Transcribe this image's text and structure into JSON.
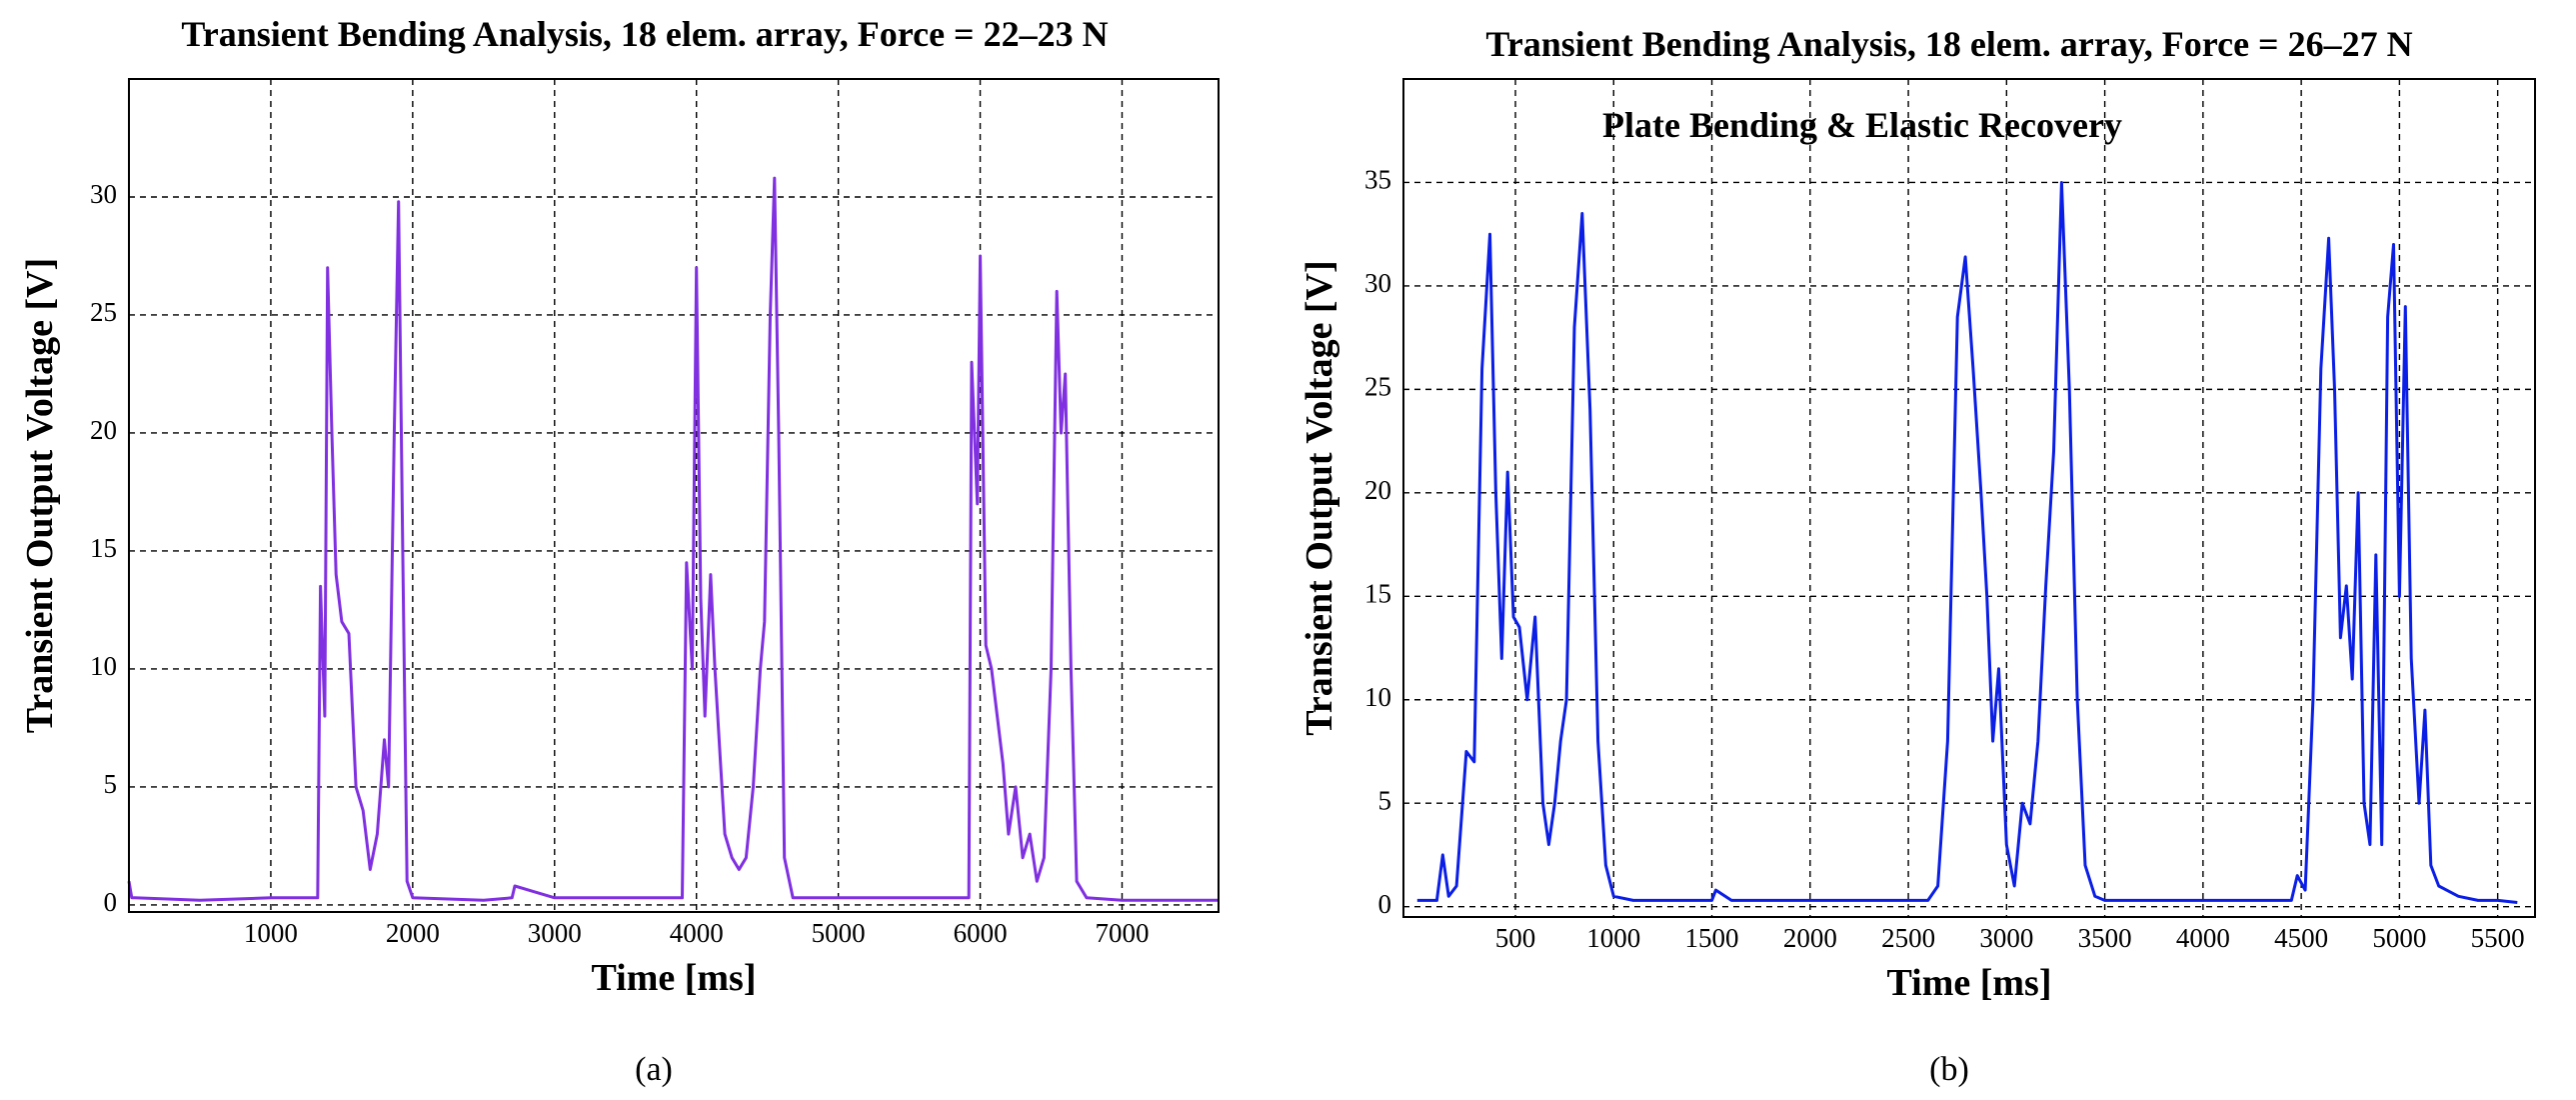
{
  "chart_data": [
    {
      "type": "line",
      "title": "Transient Bending Analysis, 18 elem. array, Force = 22–23 N",
      "xlabel": "Time [ms]",
      "ylabel": "Transient Output Voltage [V]",
      "caption": "(a)",
      "color": "#8030e0",
      "grid": true,
      "xlim": [
        0,
        7680
      ],
      "ylim": [
        -0.3,
        35
      ],
      "xticks": [
        1000,
        2000,
        3000,
        4000,
        5000,
        6000,
        7000
      ],
      "yticks": [
        0,
        5,
        10,
        15,
        20,
        25,
        30
      ],
      "x": [
        0,
        20,
        40,
        500,
        1000,
        1330,
        1350,
        1380,
        1400,
        1430,
        1460,
        1500,
        1550,
        1600,
        1650,
        1700,
        1750,
        1800,
        1830,
        1870,
        1900,
        1930,
        1960,
        2000,
        2500,
        2700,
        2720,
        3000,
        3500,
        3900,
        3930,
        3970,
        4000,
        4030,
        4060,
        4100,
        4130,
        4170,
        4200,
        4250,
        4300,
        4350,
        4400,
        4450,
        4480,
        4520,
        4550,
        4580,
        4620,
        4680,
        5000,
        5500,
        5920,
        5940,
        5980,
        6000,
        6040,
        6080,
        6120,
        6160,
        6200,
        6250,
        6300,
        6350,
        6400,
        6450,
        6500,
        6540,
        6570,
        6600,
        6640,
        6680,
        6750,
        7000,
        7680
      ],
      "values": [
        1,
        0.3,
        0.3,
        0.2,
        0.3,
        0.3,
        13.5,
        8,
        27,
        20,
        14,
        12,
        11.5,
        5,
        4,
        1.5,
        3,
        7,
        5,
        20,
        29.8,
        15,
        1,
        0.3,
        0.2,
        0.3,
        0.8,
        0.3,
        0.3,
        0.3,
        14.5,
        10,
        27,
        13,
        8,
        14,
        10,
        6,
        3,
        2,
        1.5,
        2,
        5,
        10,
        12,
        25,
        30.8,
        20,
        2,
        0.3,
        0.3,
        0.3,
        0.3,
        23,
        17,
        27.5,
        11,
        10,
        8,
        6,
        3,
        5,
        2,
        3,
        1,
        2,
        10,
        26,
        20,
        22.5,
        10,
        1,
        0.3,
        0.2,
        0.2
      ]
    },
    {
      "type": "line",
      "title": "Transient Bending Analysis, 18 elem. array, Force = 26–27 N",
      "xlabel": "Time [ms]",
      "ylabel": "Transient Output Voltage [V]",
      "caption": "(b)",
      "annotation": "Plate Bending & Elastic Recovery",
      "color": "#0a1ee6",
      "grid": true,
      "xlim": [
        -70,
        5690
      ],
      "ylim": [
        -0.5,
        40
      ],
      "xticks": [
        500,
        1000,
        1500,
        2000,
        2500,
        3000,
        3500,
        4000,
        4500,
        5000,
        5500
      ],
      "yticks": [
        0,
        5,
        10,
        15,
        20,
        25,
        30,
        35
      ],
      "x": [
        0,
        100,
        130,
        160,
        200,
        250,
        290,
        330,
        370,
        400,
        430,
        460,
        490,
        520,
        560,
        600,
        640,
        670,
        700,
        730,
        760,
        800,
        840,
        880,
        920,
        960,
        1000,
        1100,
        1500,
        1520,
        1600,
        2000,
        2600,
        2650,
        2700,
        2750,
        2790,
        2830,
        2870,
        2900,
        2930,
        2960,
        3000,
        3040,
        3080,
        3120,
        3160,
        3200,
        3240,
        3280,
        3320,
        3360,
        3400,
        3450,
        3500,
        4000,
        4450,
        4480,
        4520,
        4560,
        4600,
        4640,
        4670,
        4700,
        4730,
        4760,
        4790,
        4820,
        4850,
        4880,
        4910,
        4940,
        4970,
        5000,
        5030,
        5060,
        5100,
        5130,
        5160,
        5200,
        5300,
        5400,
        5500,
        5600
      ],
      "values": [
        0.3,
        0.3,
        2.5,
        0.5,
        1,
        7.5,
        7,
        26,
        32.5,
        20,
        12,
        21,
        14,
        13.5,
        10,
        14,
        5,
        3,
        5,
        8,
        10,
        28,
        33.5,
        24,
        8,
        2,
        0.5,
        0.3,
        0.3,
        0.8,
        0.3,
        0.3,
        0.3,
        1,
        8,
        28.5,
        31.4,
        26,
        20,
        15,
        8,
        11.5,
        3,
        1,
        5,
        4,
        8,
        15.5,
        22,
        35,
        25,
        10,
        2,
        0.5,
        0.3,
        0.3,
        0.3,
        1.5,
        0.8,
        10,
        26,
        32.3,
        25,
        13,
        15.5,
        11,
        20,
        5,
        3,
        17,
        3,
        28.5,
        32,
        15,
        29,
        12,
        5,
        9.5,
        2,
        1,
        0.5,
        0.3,
        0.3,
        0.2
      ]
    }
  ]
}
